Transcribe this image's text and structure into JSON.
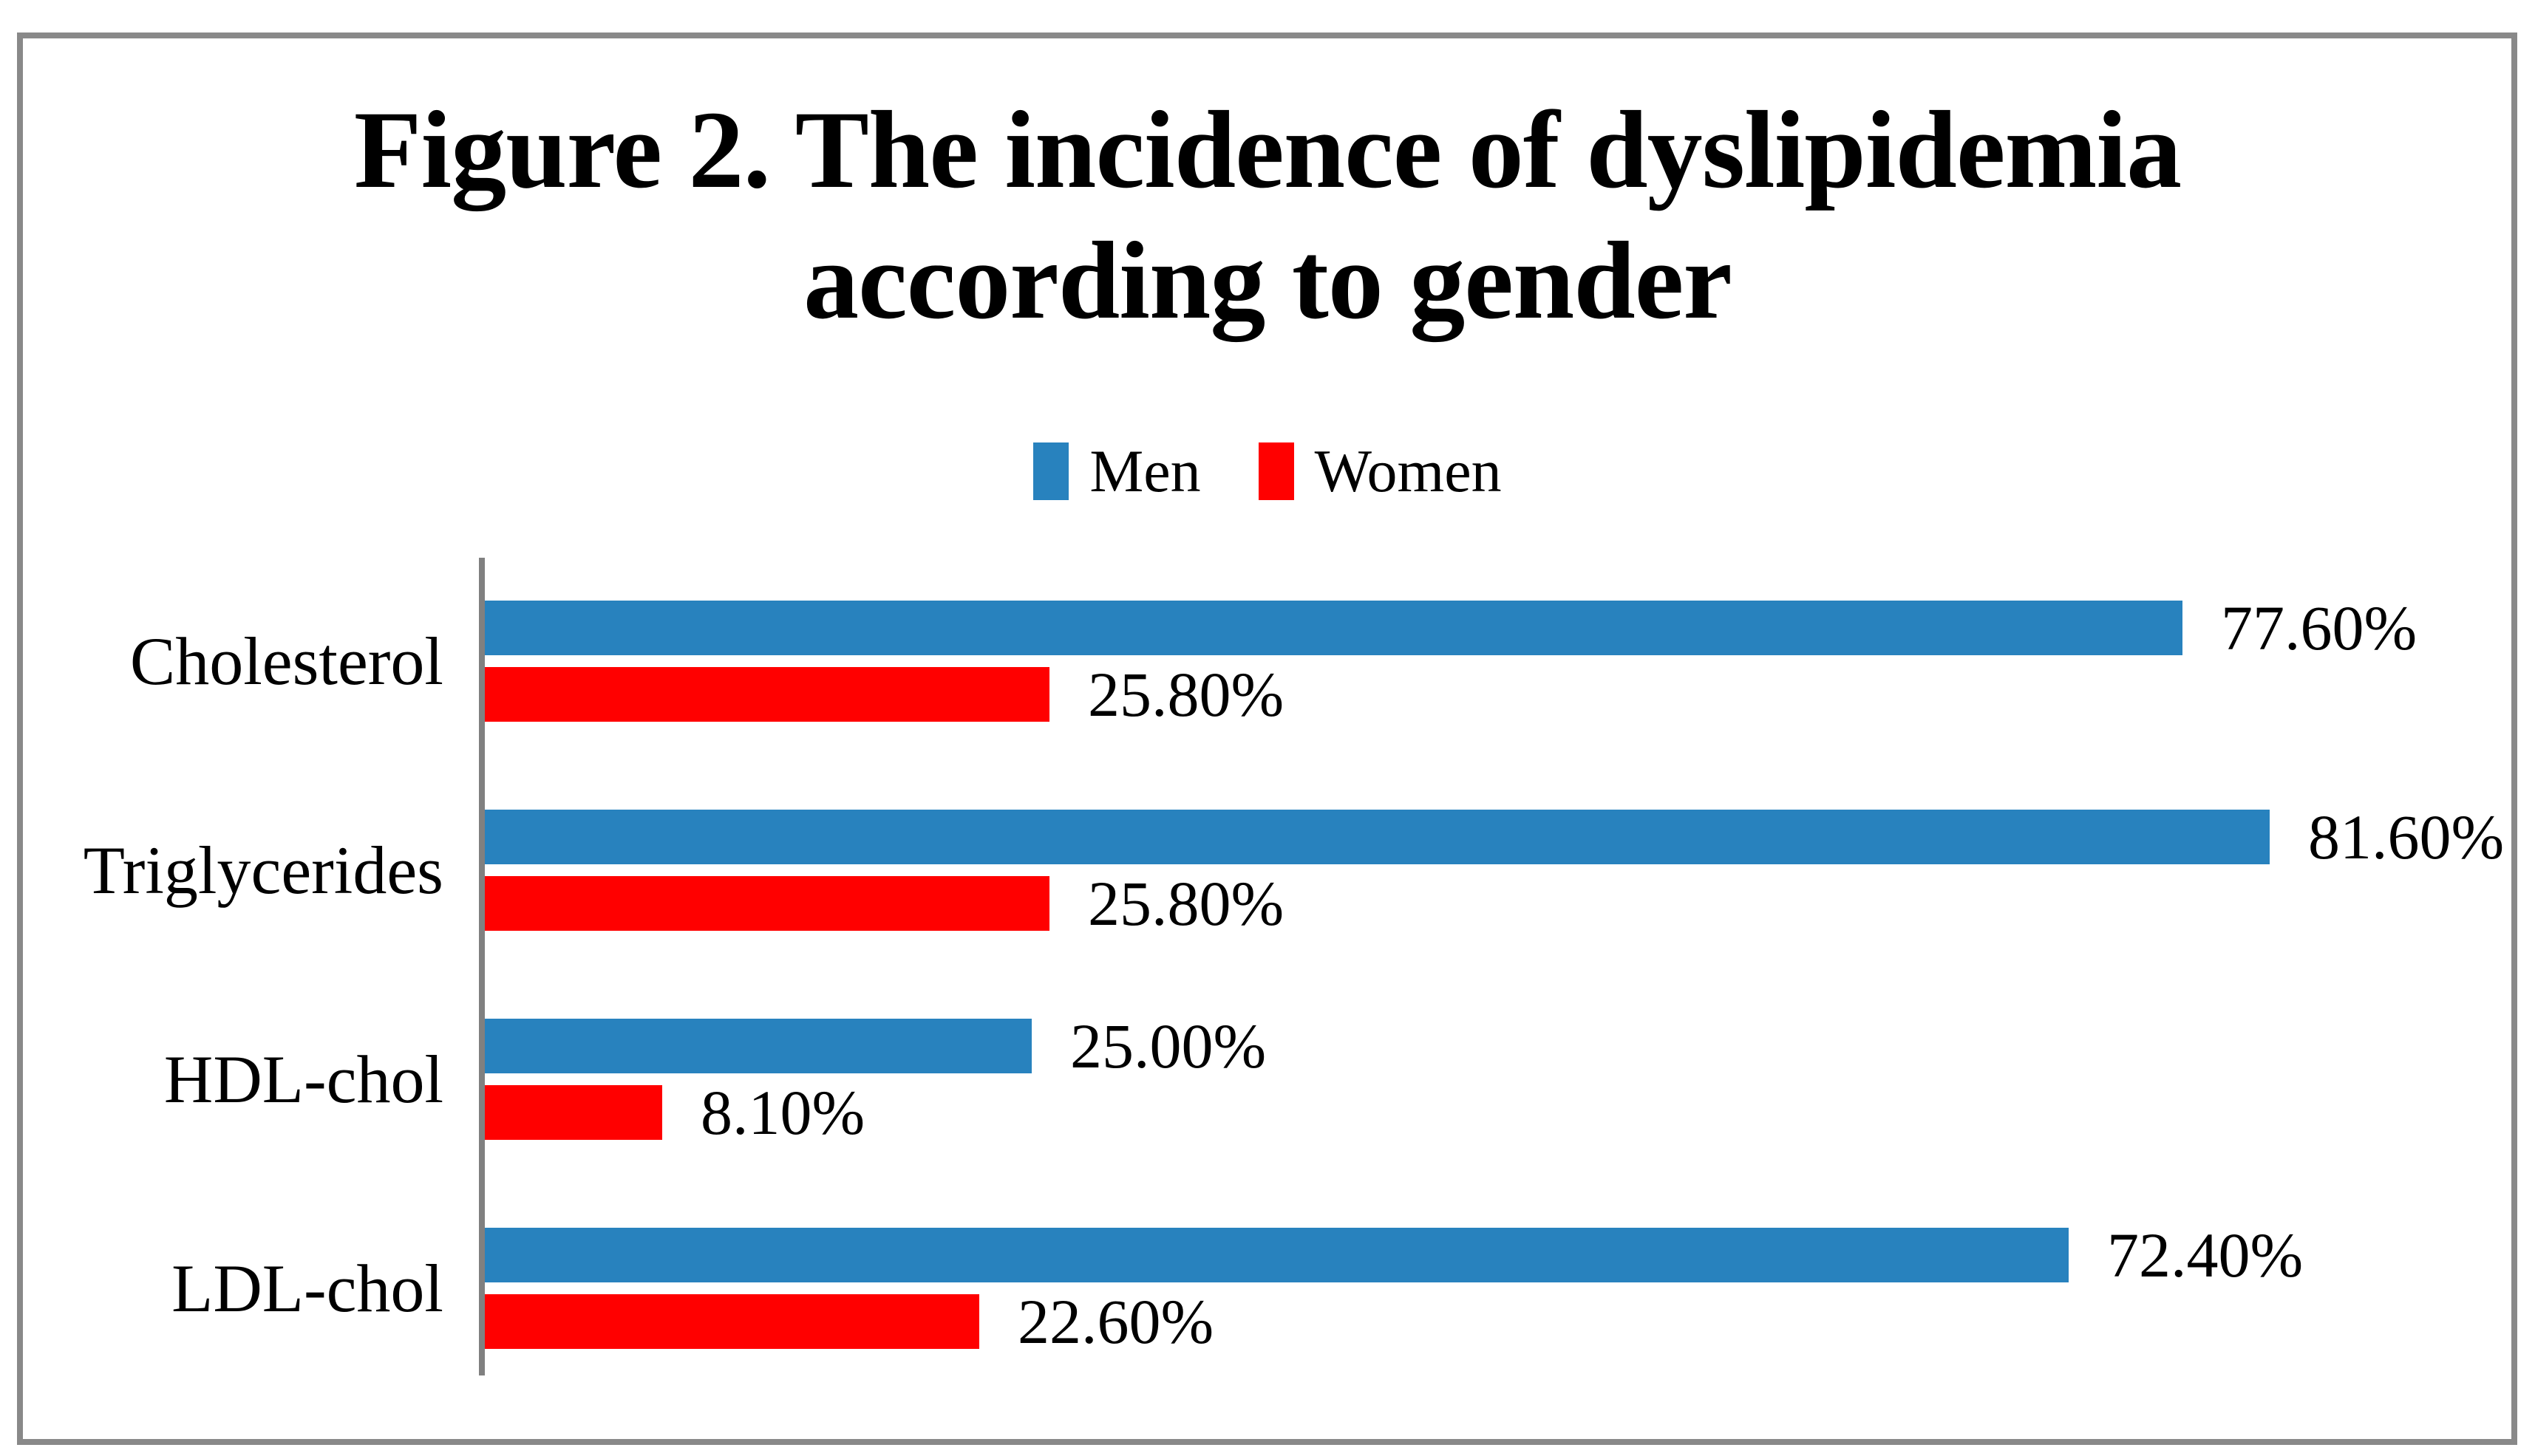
{
  "figure": {
    "title_lines": [
      "Figure 2. The incidence of dyslipidemia",
      "according to gender"
    ],
    "colors": {
      "men": "#2882BE",
      "women": "#FF0000",
      "axis": "#808080",
      "frame": "#898989",
      "text": "#000000",
      "background": "#FFFFFF"
    }
  },
  "legend": {
    "items": [
      {
        "label": "Men",
        "color_key": "men"
      },
      {
        "label": "Women",
        "color_key": "women"
      }
    ]
  },
  "chart_data": {
    "type": "bar",
    "orientation": "horizontal",
    "title": "Figure 2. The incidence of dyslipidemia according to gender",
    "categories": [
      "Cholesterol",
      "Triglycerides",
      "HDL-chol",
      "LDL-chol"
    ],
    "series": [
      {
        "name": "Men",
        "color": "#2882BE",
        "values": [
          77.6,
          81.6,
          25.0,
          72.4
        ],
        "labels": [
          "77.60%",
          "81.60%",
          "25.00%",
          "72.40%"
        ]
      },
      {
        "name": "Women",
        "color": "#FF0000",
        "values": [
          25.8,
          25.8,
          8.1,
          22.6
        ],
        "labels": [
          "25.80%",
          "25.80%",
          "8.10%",
          "22.60%"
        ]
      }
    ],
    "unit": "%",
    "xlim": [
      0,
      90
    ],
    "grid": false,
    "legend_position": "top",
    "data_labels": true,
    "xlabel": "",
    "ylabel": ""
  }
}
